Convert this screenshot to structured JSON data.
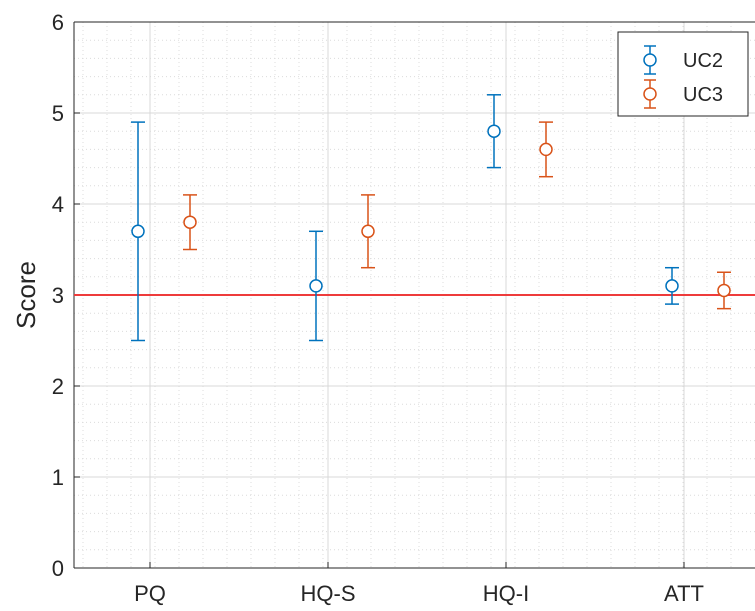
{
  "chart_data": {
    "type": "scatter",
    "title": "",
    "xlabel": "",
    "ylabel": "Score",
    "categories": [
      "PQ",
      "HQ-S",
      "HQ-I",
      "ATT"
    ],
    "ylim": [
      0,
      6
    ],
    "yticks": [
      "0",
      "1",
      "2",
      "3",
      "4",
      "5",
      "6"
    ],
    "grid": true,
    "minor_grid": true,
    "legend_position": "top-right",
    "reference_line": {
      "y": 3,
      "color": "#ee3b3b"
    },
    "series": [
      {
        "name": "UC2",
        "color": "#0072bd",
        "values": [
          3.7,
          3.1,
          4.8,
          3.1
        ],
        "lower": [
          2.5,
          2.5,
          4.4,
          2.9
        ],
        "upper": [
          4.9,
          3.7,
          5.2,
          3.3
        ]
      },
      {
        "name": "UC3",
        "color": "#d95319",
        "values": [
          3.8,
          3.7,
          4.6,
          3.05
        ],
        "lower": [
          3.5,
          3.3,
          4.3,
          2.85
        ],
        "upper": [
          4.1,
          4.1,
          4.9,
          3.25
        ]
      }
    ]
  }
}
